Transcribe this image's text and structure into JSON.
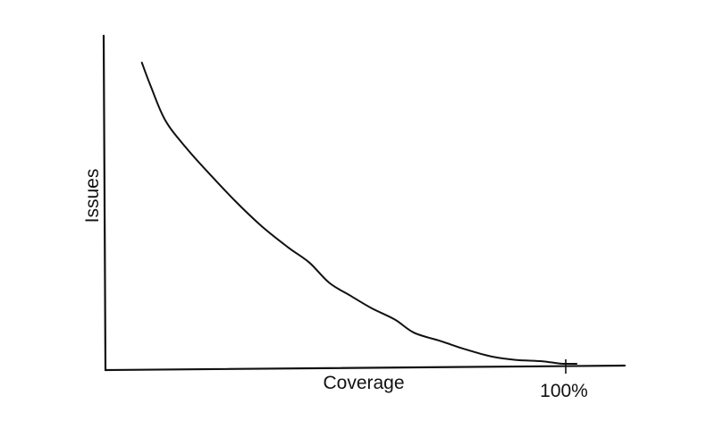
{
  "chart_data": {
    "type": "line",
    "title": "",
    "xlabel": "Coverage",
    "ylabel": "Issues",
    "x_tick_labels": [
      "100%"
    ],
    "xlim": [
      0,
      110
    ],
    "ylim": [
      0,
      100
    ],
    "grid": false,
    "legend": "none",
    "line_color": "#111111",
    "series": [
      {
        "x": [
          7.7,
          9.4,
          12.6,
          17.1,
          22.0,
          27.5,
          33.1,
          38.6,
          43.2,
          47.4,
          51.9,
          56.4,
          61.3,
          65.4,
          71.2,
          76.0,
          81.8,
          86.8,
          92.4,
          96.3,
          99.8
        ],
        "y": [
          91.9,
          85.5,
          74.6,
          66.1,
          58.3,
          50.0,
          42.4,
          36.1,
          31.4,
          25.3,
          21.4,
          17.6,
          14.2,
          10.2,
          7.6,
          5.3,
          3.0,
          2.0,
          1.6,
          0.9,
          0.8
        ]
      }
    ]
  }
}
